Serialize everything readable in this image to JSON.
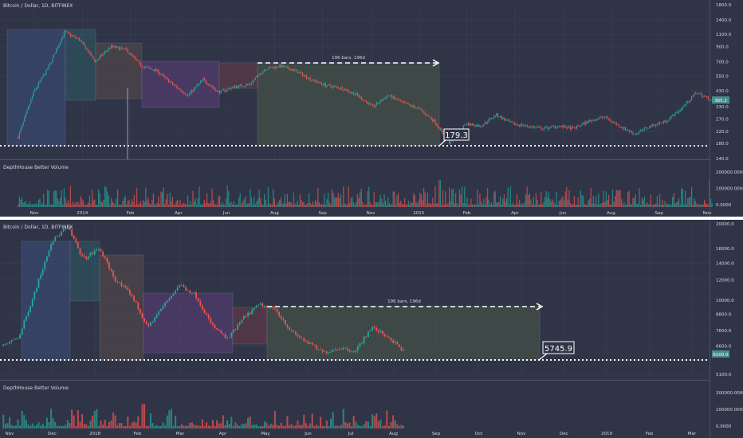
{
  "colors": {
    "background": "#2f3447",
    "grid": "#3a4055",
    "up": "#26a69a",
    "down": "#ef5350",
    "box_blue": "#3d4f7a",
    "box_teal": "#2e5a66",
    "box_brown": "#5a4a48",
    "box_purple": "#5c3e7a",
    "box_maroon": "#6b3a45",
    "box_olive": "#4b5a45",
    "divider": "#ffffff",
    "last_price_badge": "#4a8a8f"
  },
  "top_panel": {
    "title": "Bitcoin / Dollar, 1D, BITFINEX",
    "price_axis": [
      "1800.0",
      "1400.0",
      "1100.0",
      "900.0",
      "700.0",
      "550.0",
      "430.0",
      "330.0",
      "270.0",
      "220.0",
      "180.0",
      "140.0"
    ],
    "last_price": "365.2",
    "measure_label": "196 bars, 196d",
    "annotation_value": "179.3",
    "volume_indicator": "DepthHouse Better Volume",
    "volume_axis": [
      "200000.0000",
      "100000.0000",
      "0.0000"
    ],
    "time_axis": [
      "Nov",
      "2014",
      "Feb",
      "Apr",
      "Jun",
      "Aug",
      "Sep",
      "Nov",
      "2015",
      "Feb",
      "Apr",
      "Jun",
      "Aug",
      "Sep",
      "Nov"
    ]
  },
  "bottom_panel": {
    "title": "Bitcoin / Dollar, 1D, BITFINEX",
    "price_axis": [
      "20000.0",
      "16000.0",
      "14000.0",
      "12000.0",
      "10000.0",
      "8800.0",
      "7600.0",
      "6600.0",
      "5100.0"
    ],
    "last_price": "6100.0",
    "measure_label": "196 bars, 196d",
    "annotation_value": "5745.9",
    "volume_indicator": "DepthHouse Better Volume",
    "volume_axis": [
      "200000.0000",
      "100000.0000",
      "0.0000"
    ],
    "time_axis": [
      "Nov",
      "Dec",
      "2018",
      "Feb",
      "Mar",
      "Apr",
      "May",
      "Jun",
      "Jul",
      "Aug",
      "Sep",
      "Oct",
      "Nov",
      "Dec",
      "2019",
      "Feb",
      "Mar"
    ]
  },
  "chart_data": [
    {
      "type": "candlestick",
      "title": "Bitcoin / Dollar, 1D, BITFINEX",
      "y_scale": "log",
      "ylim": [
        140,
        1800
      ],
      "x": [
        "Nov",
        "2014",
        "Feb",
        "Apr",
        "Jun",
        "Aug",
        "Sep",
        "Nov",
        "2015",
        "Feb",
        "Apr",
        "Jun",
        "Aug",
        "Sep",
        "Nov"
      ],
      "close_path": [
        200,
        420,
        650,
        1150,
        1000,
        700,
        900,
        850,
        650,
        600,
        480,
        400,
        520,
        420,
        460,
        480,
        620,
        650,
        600,
        520,
        470,
        450,
        400,
        330,
        400,
        350,
        320,
        260,
        179,
        250,
        240,
        290,
        250,
        240,
        230,
        240,
        230,
        260,
        280,
        240,
        210,
        240,
        260,
        320,
        420,
        365
      ],
      "horizontal_level": 180,
      "measure_bars": 196,
      "annotation": "179.3",
      "last_price": 365.2
    },
    {
      "type": "candlestick",
      "title": "Bitcoin / Dollar, 1D, BITFINEX",
      "y_scale": "log",
      "ylim": [
        5100,
        20000
      ],
      "x": [
        "Nov",
        "Dec",
        "2018",
        "Feb",
        "Mar",
        "Apr",
        "May",
        "Jun",
        "Jul",
        "Aug",
        "Sep",
        "Oct",
        "Nov",
        "Dec",
        "2019",
        "Feb",
        "Mar"
      ],
      "close_path": [
        6600,
        7200,
        11000,
        17000,
        19500,
        14500,
        16000,
        12000,
        10500,
        7800,
        9500,
        11500,
        10500,
        8000,
        7000,
        8500,
        9600,
        9200,
        7500,
        6800,
        6200,
        6500,
        6300,
        7800,
        7200,
        6300
      ],
      "horizontal_level": 5745.9,
      "measure_bars": 196,
      "annotation": "5745.9",
      "last_price": 6100
    }
  ]
}
